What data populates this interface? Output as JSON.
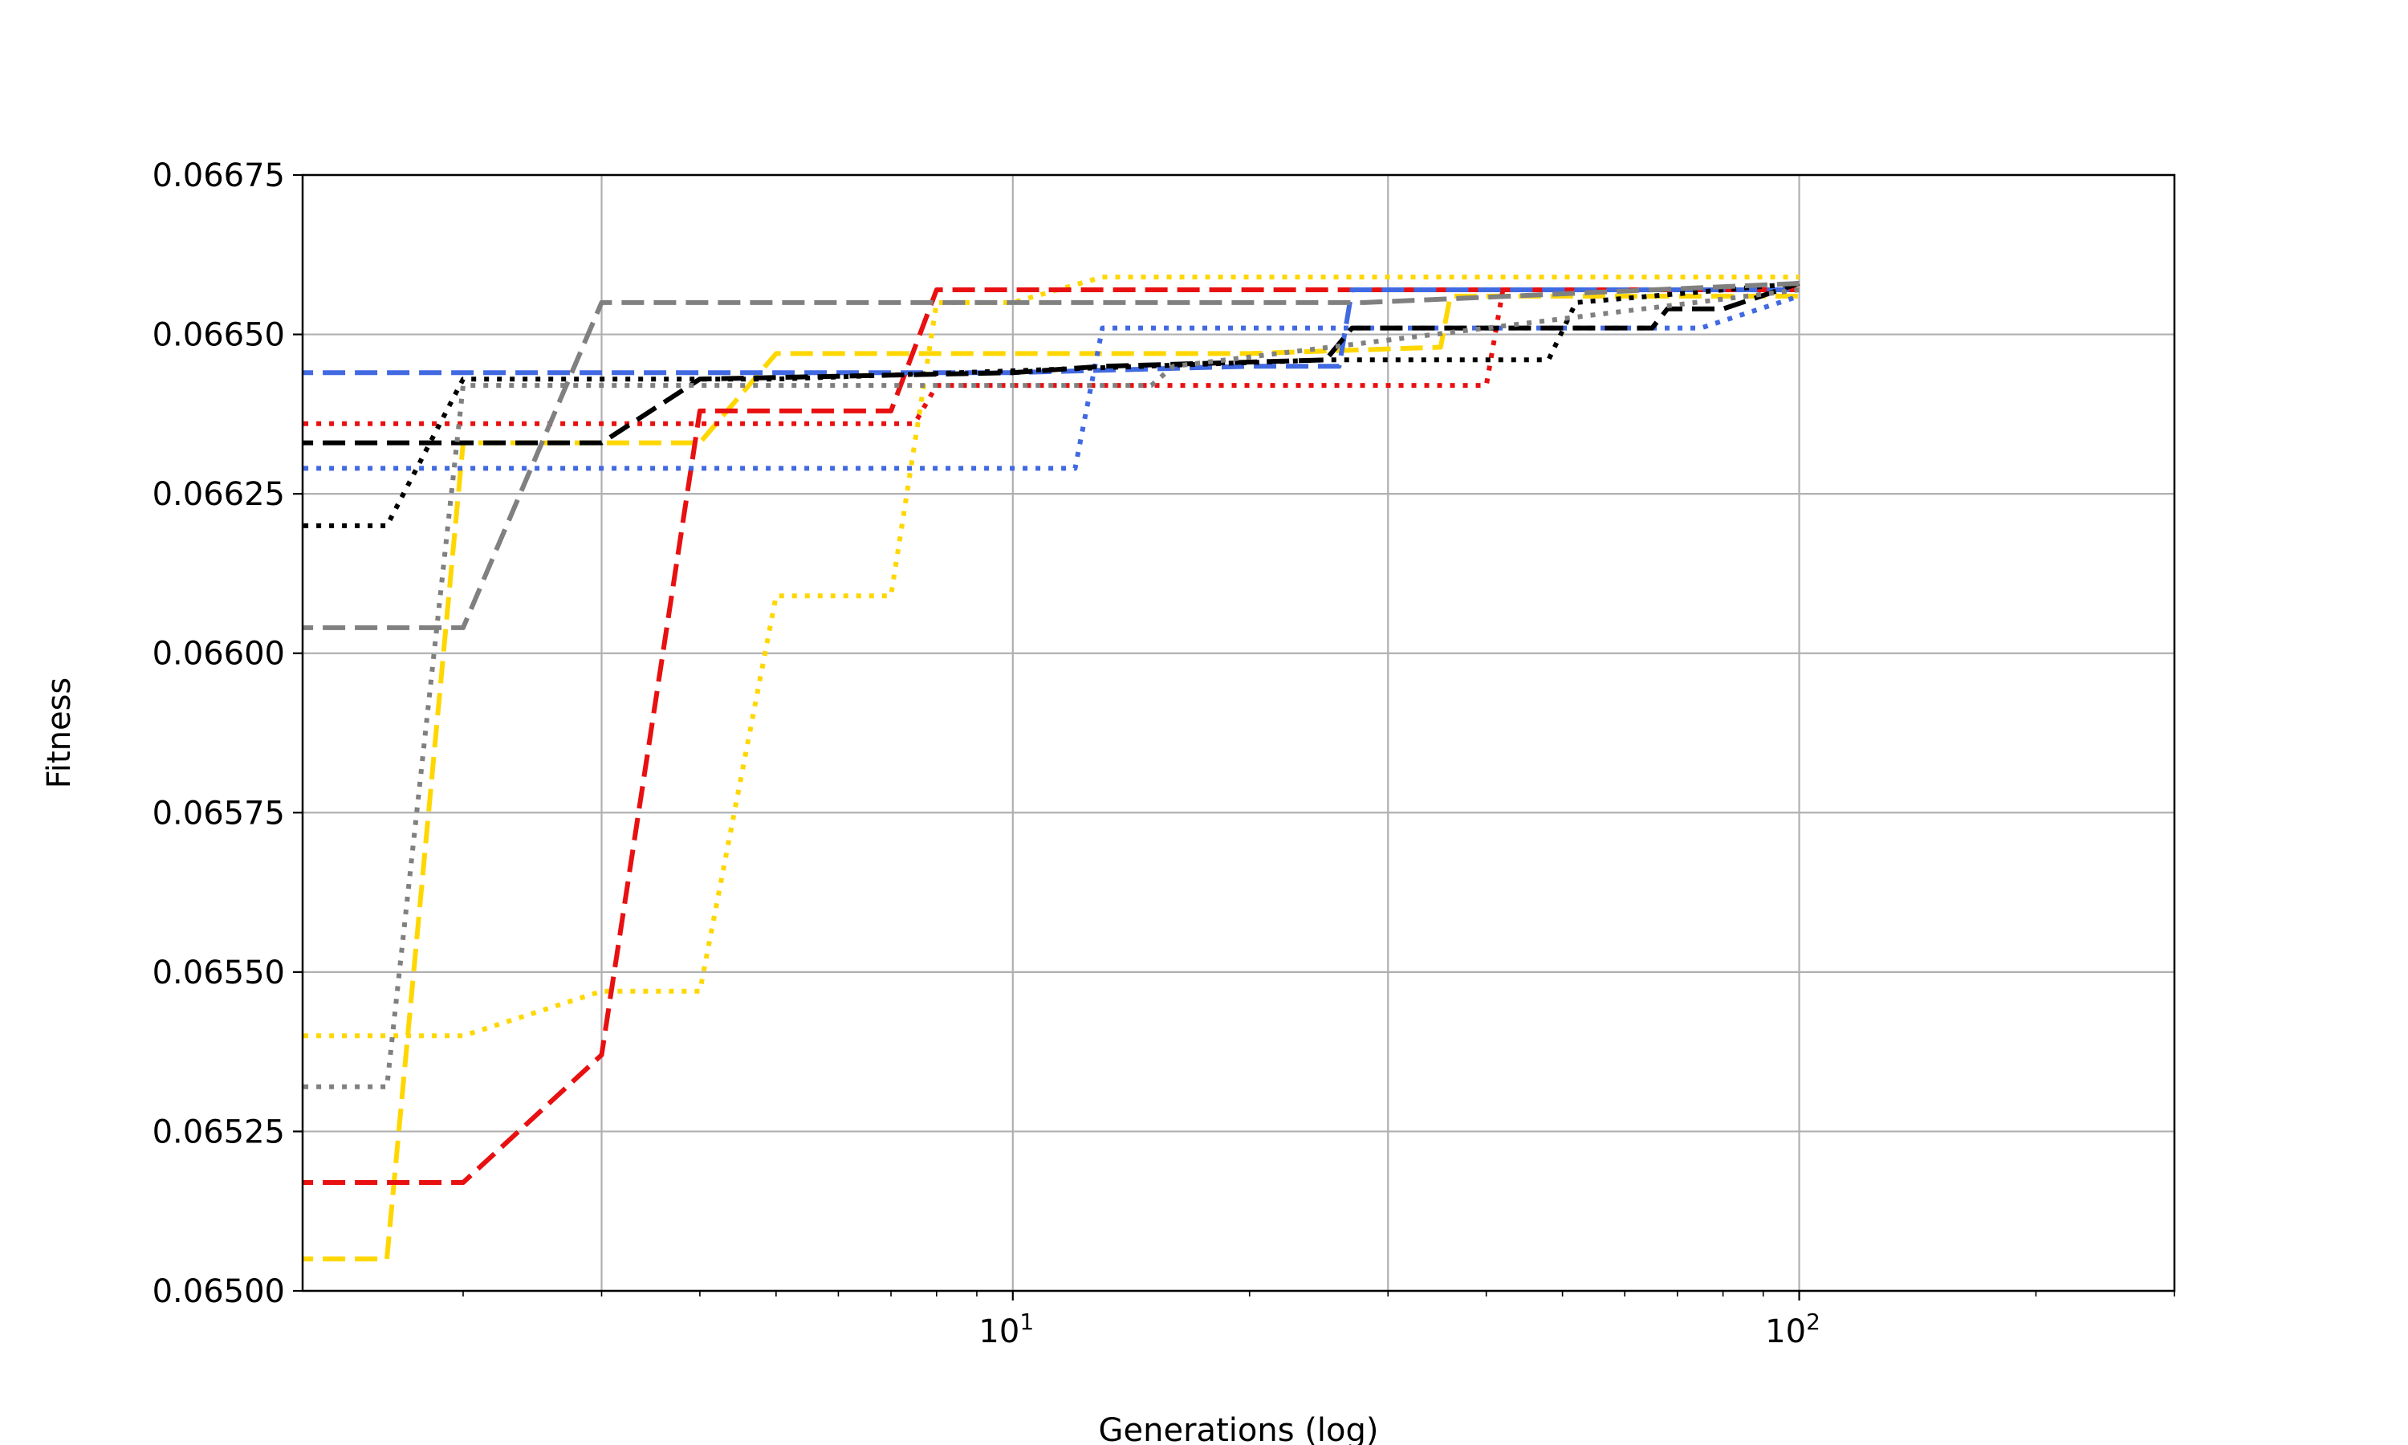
{
  "chart_data": {
    "type": "line",
    "title": "",
    "xlabel": "Generations (log)",
    "ylabel": "Fitness",
    "xscale": "log",
    "xlim": [
      1.25,
      300
    ],
    "ylim": [
      0.065,
      0.06675
    ],
    "grid": true,
    "legend": "none",
    "x_major_ticks": [
      {
        "value": 10,
        "base": "10",
        "exp": "1"
      },
      {
        "value": 100,
        "base": "10",
        "exp": "2"
      }
    ],
    "x_grid_values": [
      3,
      10,
      30,
      100
    ],
    "y_ticks": [
      {
        "value": 0.065,
        "label": "0.06500"
      },
      {
        "value": 0.06525,
        "label": "0.06525"
      },
      {
        "value": 0.0655,
        "label": "0.06550"
      },
      {
        "value": 0.06575,
        "label": "0.06575"
      },
      {
        "value": 0.066,
        "label": "0.06600"
      },
      {
        "value": 0.06625,
        "label": "0.06625"
      },
      {
        "value": 0.0665,
        "label": "0.06650"
      },
      {
        "value": 0.06675,
        "label": "0.06675"
      }
    ],
    "series": [
      {
        "color": "#FFD700",
        "dash": "dashed",
        "x": [
          1,
          1.6,
          2,
          3,
          4,
          5,
          7,
          8,
          10,
          20,
          35,
          36,
          100
        ],
        "y": [
          0.06505,
          0.06505,
          0.06633,
          0.06633,
          0.06633,
          0.06647,
          0.06647,
          0.06647,
          0.06647,
          0.06647,
          0.06648,
          0.06656,
          0.06656
        ]
      },
      {
        "color": "#FFD700",
        "dotted": true,
        "x": [
          1,
          2,
          3,
          4,
          5,
          7,
          8,
          10,
          13,
          100
        ],
        "y": [
          0.0654,
          0.0654,
          0.06547,
          0.06547,
          0.06609,
          0.06609,
          0.06655,
          0.06655,
          0.06659,
          0.06659
        ]
      },
      {
        "color": "#E81010",
        "dash": "dashed",
        "x": [
          1,
          2,
          3,
          4,
          7,
          8,
          100
        ],
        "y": [
          0.06517,
          0.06517,
          0.06537,
          0.06638,
          0.06638,
          0.06657,
          0.06657
        ]
      },
      {
        "color": "#E81010",
        "dotted": true,
        "x": [
          1,
          7.5,
          8,
          10,
          40,
          42,
          100
        ],
        "y": [
          0.06636,
          0.06636,
          0.06642,
          0.06642,
          0.06642,
          0.06657,
          0.06657
        ]
      },
      {
        "color": "#4169E1",
        "dash": "dashed",
        "x": [
          1,
          10,
          20,
          26,
          27,
          100
        ],
        "y": [
          0.06644,
          0.06644,
          0.06645,
          0.06645,
          0.06657,
          0.06657
        ]
      },
      {
        "color": "#4169E1",
        "dotted": true,
        "x": [
          1,
          12,
          13,
          75,
          100
        ],
        "y": [
          0.06629,
          0.06629,
          0.06651,
          0.06651,
          0.06656
        ]
      },
      {
        "color": "#000000",
        "dash": "dashed",
        "x": [
          1,
          3,
          4,
          10,
          13,
          25,
          27,
          65,
          68,
          80,
          100
        ],
        "y": [
          0.06633,
          0.06633,
          0.06643,
          0.06644,
          0.06645,
          0.06646,
          0.06651,
          0.06651,
          0.06654,
          0.06654,
          0.06658
        ]
      },
      {
        "color": "#000000",
        "dotted": true,
        "x": [
          1,
          1.6,
          2,
          3,
          5,
          25,
          48,
          52,
          100
        ],
        "y": [
          0.0662,
          0.0662,
          0.06643,
          0.06643,
          0.06643,
          0.06646,
          0.06646,
          0.06655,
          0.06658
        ]
      },
      {
        "color": "#808080",
        "dash": "dashed",
        "x": [
          1,
          2,
          3,
          27,
          28,
          100
        ],
        "y": [
          0.06604,
          0.06604,
          0.06655,
          0.06655,
          0.06655,
          0.06658
        ]
      },
      {
        "color": "#808080",
        "dotted": true,
        "x": [
          1,
          1.6,
          2,
          3,
          15,
          16,
          100
        ],
        "y": [
          0.06532,
          0.06532,
          0.06642,
          0.06642,
          0.06642,
          0.06645,
          0.06657
        ]
      }
    ]
  }
}
